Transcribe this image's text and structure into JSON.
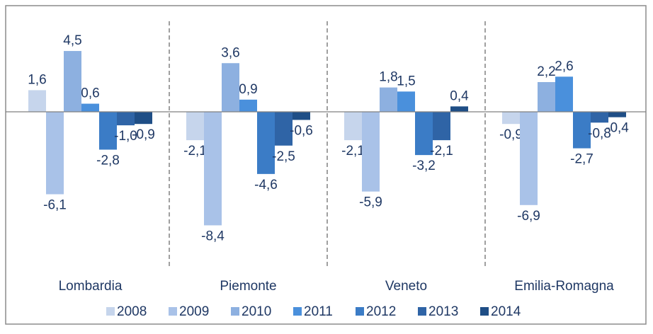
{
  "chart_data": {
    "type": "bar",
    "categories": [
      "Lombardia",
      "Piemonte",
      "Veneto",
      "Emilia-Romagna"
    ],
    "series": [
      {
        "name": "2008",
        "color": "#c6d5ec",
        "values": [
          1.6,
          -2.1,
          -2.1,
          -0.9
        ],
        "value_labels": [
          "1,6",
          "-2,1",
          "-2,1",
          "-0,9"
        ]
      },
      {
        "name": "2009",
        "color": "#a9c2e8",
        "values": [
          -6.1,
          -8.4,
          -5.9,
          -6.9
        ],
        "value_labels": [
          "-6,1",
          "-8,4",
          "-5,9",
          "-6,9"
        ]
      },
      {
        "name": "2010",
        "color": "#8db0e0",
        "values": [
          4.5,
          3.6,
          1.8,
          2.2
        ],
        "value_labels": [
          "4,5",
          "3,6",
          "1,8",
          "2,2"
        ]
      },
      {
        "name": "2011",
        "color": "#4a90dc",
        "values": [
          0.6,
          0.9,
          1.5,
          2.6
        ],
        "value_labels": [
          "0,6",
          "0,9",
          "1,5",
          "2,6"
        ]
      },
      {
        "name": "2012",
        "color": "#3b7cc6",
        "values": [
          -2.8,
          -4.6,
          -3.2,
          -2.7
        ],
        "value_labels": [
          "-2,8",
          "-4,6",
          "-3,2",
          "-2,7"
        ]
      },
      {
        "name": "2013",
        "color": "#2f64a6",
        "values": [
          -1.0,
          -2.5,
          -2.1,
          -0.8
        ],
        "value_labels": [
          "-1,0",
          "-2,5",
          "-2,1",
          "-0,8"
        ]
      },
      {
        "name": "2014",
        "color": "#1f4e86",
        "values": [
          -0.9,
          -0.6,
          0.4,
          -0.4
        ],
        "value_labels": [
          "-0,9",
          "-0,6",
          "0,4",
          "-0,4"
        ]
      }
    ],
    "legend": "bottom"
  }
}
